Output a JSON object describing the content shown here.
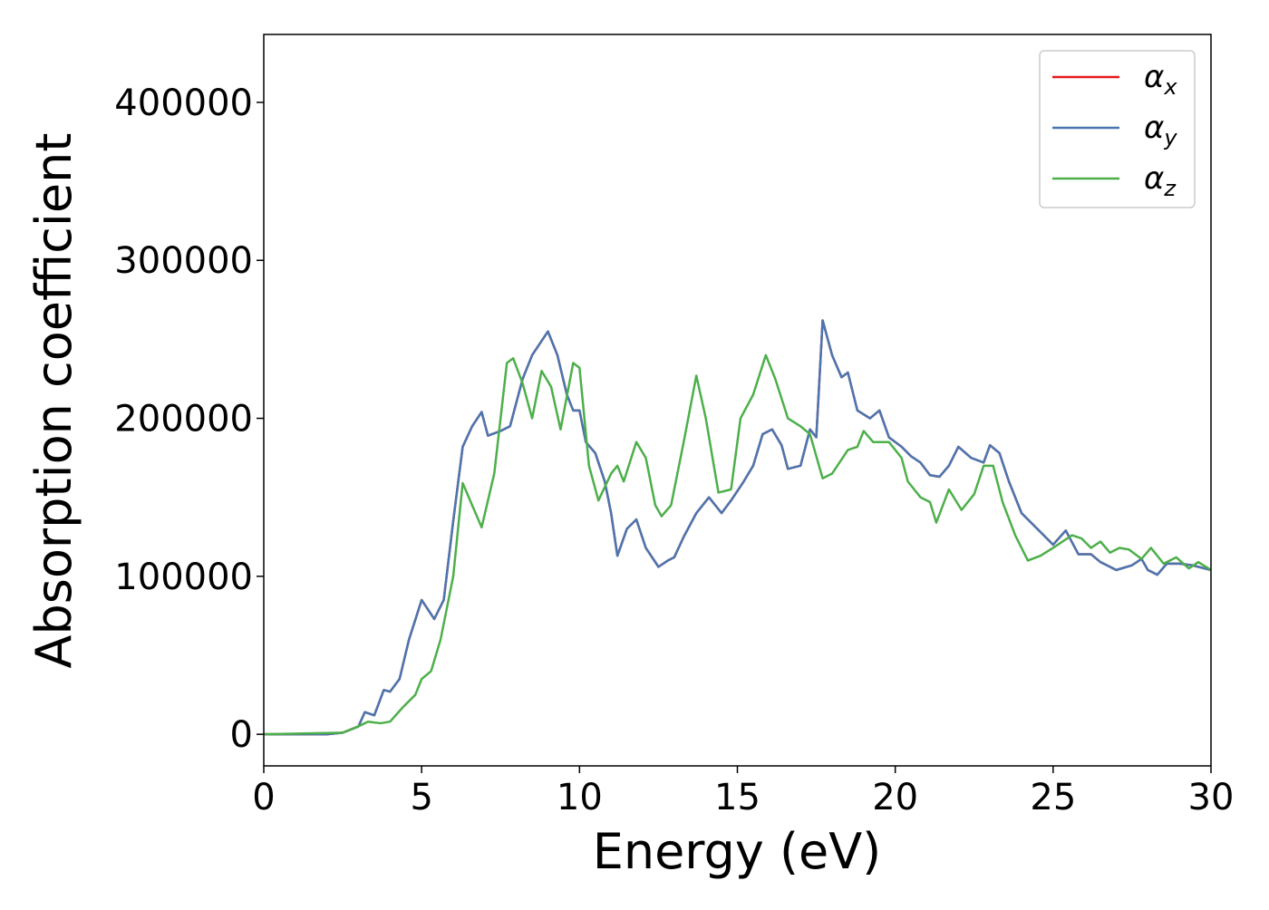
{
  "chart_data": {
    "type": "line",
    "xlabel": "Energy (eV)",
    "ylabel": "Absorption coefficient",
    "xlim": [
      0,
      30
    ],
    "xticks": [
      0,
      5,
      10,
      15,
      20,
      25,
      30
    ],
    "ylim": [
      -20000,
      443000
    ],
    "yticks": [
      0,
      100000,
      200000,
      300000,
      400000
    ],
    "legend": "upper right",
    "series": [
      {
        "name": "αx",
        "color": "#e41a1c",
        "x": [
          0,
          2,
          2.5,
          3,
          3.2,
          3.5,
          3.8,
          4.0,
          4.3,
          4.6,
          5.0,
          5.4,
          5.7,
          6.0,
          6.3,
          6.6,
          6.9,
          7.1,
          7.5,
          7.8,
          8.2,
          8.5,
          9.0,
          9.3,
          9.6,
          9.8,
          10.0,
          10.2,
          10.5,
          10.8,
          11.0,
          11.2,
          11.5,
          11.8,
          12.1,
          12.5,
          12.8,
          13.0,
          13.3,
          13.7,
          14.1,
          14.5,
          14.8,
          15.2,
          15.5,
          15.8,
          16.1,
          16.4,
          16.6,
          17.0,
          17.3,
          17.5,
          17.7,
          18.0,
          18.3,
          18.5,
          18.8,
          19.2,
          19.5,
          19.8,
          20.2,
          20.5,
          20.8,
          21.1,
          21.4,
          21.7,
          22.0,
          22.4,
          22.8,
          23.0,
          23.3,
          23.6,
          24.0,
          24.5,
          25.0,
          25.4,
          25.8,
          26.2,
          26.5,
          27.0,
          27.5,
          27.8,
          28.0,
          28.3,
          28.6,
          29.0,
          29.4,
          30.0
        ],
        "values": [
          0,
          0,
          1000,
          5000,
          14000,
          12000,
          28000,
          27000,
          35000,
          60000,
          85000,
          73000,
          85000,
          135000,
          182000,
          195000,
          204000,
          189000,
          192000,
          195000,
          225000,
          240000,
          255000,
          240000,
          215000,
          205000,
          205000,
          185000,
          178000,
          160000,
          140000,
          113000,
          130000,
          136000,
          118000,
          106000,
          110000,
          112000,
          125000,
          140000,
          150000,
          140000,
          148000,
          160000,
          170000,
          190000,
          193000,
          183000,
          168000,
          170000,
          193000,
          188000,
          262000,
          240000,
          226000,
          229000,
          205000,
          200000,
          205000,
          188000,
          182000,
          176000,
          172000,
          164000,
          163000,
          170000,
          182000,
          175000,
          172000,
          183000,
          178000,
          160000,
          140000,
          130000,
          120000,
          129000,
          114000,
          114000,
          109000,
          104000,
          107000,
          111000,
          104000,
          101000,
          108000,
          108000,
          107000,
          104000
        ]
      },
      {
        "name": "αy",
        "color": "#4a76b0",
        "x": [
          0,
          2,
          2.5,
          3,
          3.2,
          3.5,
          3.8,
          4.0,
          4.3,
          4.6,
          5.0,
          5.4,
          5.7,
          6.0,
          6.3,
          6.6,
          6.9,
          7.1,
          7.5,
          7.8,
          8.2,
          8.5,
          9.0,
          9.3,
          9.6,
          9.8,
          10.0,
          10.2,
          10.5,
          10.8,
          11.0,
          11.2,
          11.5,
          11.8,
          12.1,
          12.5,
          12.8,
          13.0,
          13.3,
          13.7,
          14.1,
          14.5,
          14.8,
          15.2,
          15.5,
          15.8,
          16.1,
          16.4,
          16.6,
          17.0,
          17.3,
          17.5,
          17.7,
          18.0,
          18.3,
          18.5,
          18.8,
          19.2,
          19.5,
          19.8,
          20.2,
          20.5,
          20.8,
          21.1,
          21.4,
          21.7,
          22.0,
          22.4,
          22.8,
          23.0,
          23.3,
          23.6,
          24.0,
          24.5,
          25.0,
          25.4,
          25.8,
          26.2,
          26.5,
          27.0,
          27.5,
          27.8,
          28.0,
          28.3,
          28.6,
          29.0,
          29.4,
          30.0
        ],
        "values": [
          0,
          0,
          1000,
          5000,
          14000,
          12000,
          28000,
          27000,
          35000,
          60000,
          85000,
          73000,
          85000,
          135000,
          182000,
          195000,
          204000,
          189000,
          192000,
          195000,
          225000,
          240000,
          255000,
          240000,
          215000,
          205000,
          205000,
          185000,
          178000,
          160000,
          140000,
          113000,
          130000,
          136000,
          118000,
          106000,
          110000,
          112000,
          125000,
          140000,
          150000,
          140000,
          148000,
          160000,
          170000,
          190000,
          193000,
          183000,
          168000,
          170000,
          193000,
          188000,
          262000,
          240000,
          226000,
          229000,
          205000,
          200000,
          205000,
          188000,
          182000,
          176000,
          172000,
          164000,
          163000,
          170000,
          182000,
          175000,
          172000,
          183000,
          178000,
          160000,
          140000,
          130000,
          120000,
          129000,
          114000,
          114000,
          109000,
          104000,
          107000,
          111000,
          104000,
          101000,
          108000,
          108000,
          107000,
          104000
        ]
      },
      {
        "name": "αz",
        "color": "#4daf4a",
        "x": [
          0,
          2.5,
          3,
          3.3,
          3.7,
          4.0,
          4.4,
          4.8,
          5.0,
          5.3,
          5.6,
          6.0,
          6.3,
          6.6,
          6.9,
          7.3,
          7.7,
          7.9,
          8.2,
          8.5,
          8.8,
          9.1,
          9.4,
          9.8,
          10.0,
          10.3,
          10.6,
          11.0,
          11.2,
          11.4,
          11.8,
          12.1,
          12.4,
          12.6,
          12.9,
          13.3,
          13.7,
          14.0,
          14.4,
          14.8,
          15.1,
          15.5,
          15.9,
          16.2,
          16.6,
          17.0,
          17.3,
          17.7,
          18.0,
          18.5,
          18.8,
          19.0,
          19.3,
          19.8,
          20.2,
          20.4,
          20.8,
          21.1,
          21.3,
          21.7,
          22.1,
          22.5,
          22.8,
          23.1,
          23.4,
          23.8,
          24.2,
          24.6,
          25.0,
          25.6,
          25.9,
          26.2,
          26.5,
          26.8,
          27.1,
          27.4,
          27.8,
          28.1,
          28.5,
          28.9,
          29.3,
          29.6,
          30
        ],
        "values": [
          0,
          1000,
          5000,
          8000,
          7000,
          8000,
          17000,
          25000,
          35000,
          40000,
          60000,
          100000,
          159000,
          145000,
          131000,
          165000,
          235000,
          238000,
          222000,
          200000,
          230000,
          220000,
          193000,
          235000,
          232000,
          170000,
          148000,
          165000,
          170000,
          160000,
          185000,
          175000,
          145000,
          138000,
          145000,
          185000,
          227000,
          200000,
          153000,
          155000,
          200000,
          215000,
          240000,
          225000,
          200000,
          195000,
          190000,
          162000,
          165000,
          180000,
          182000,
          192000,
          185000,
          185000,
          175000,
          160000,
          150000,
          147000,
          134000,
          155000,
          142000,
          152000,
          170000,
          170000,
          147000,
          126000,
          110000,
          113000,
          118000,
          126000,
          124000,
          118000,
          122000,
          115000,
          118000,
          117000,
          111000,
          118000,
          108000,
          112000,
          105000,
          109000,
          104000
        ]
      }
    ]
  }
}
